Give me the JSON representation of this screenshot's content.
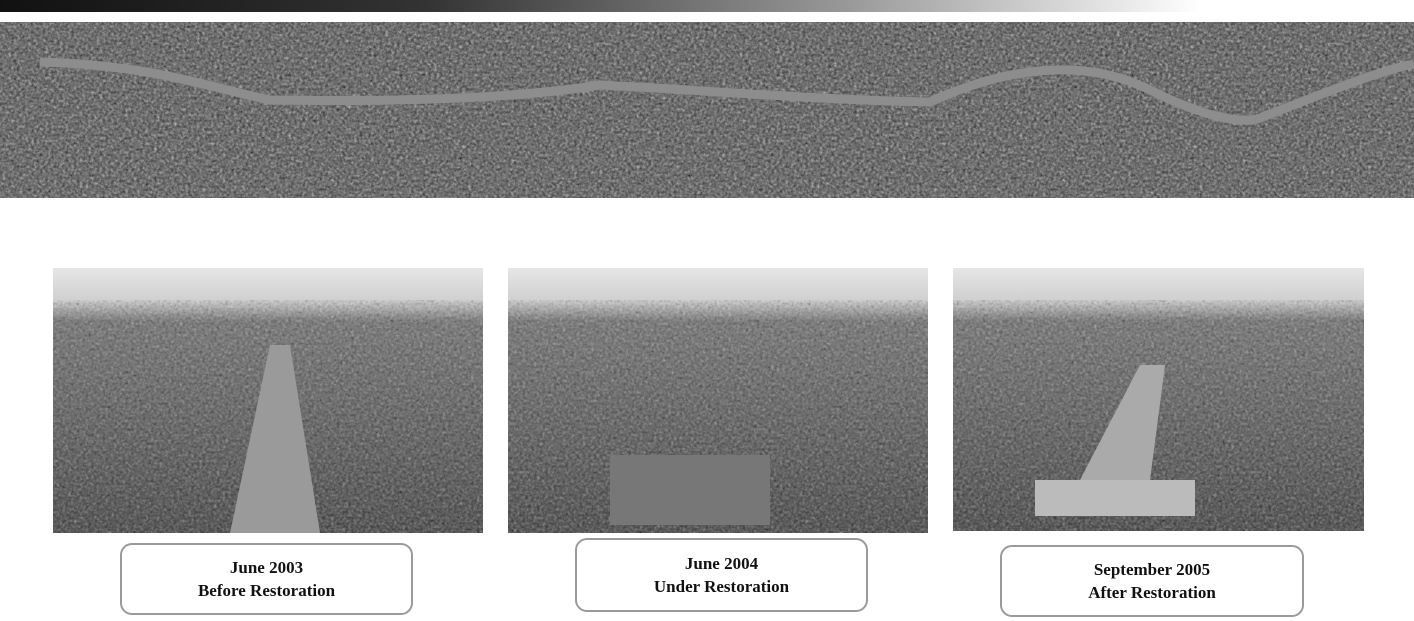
{
  "captions": [
    {
      "date": "June 2003",
      "stage": "Before Restoration"
    },
    {
      "date": "June 2004",
      "stage": "Under Restoration"
    },
    {
      "date": "September 2005",
      "stage": "After Restoration"
    }
  ]
}
